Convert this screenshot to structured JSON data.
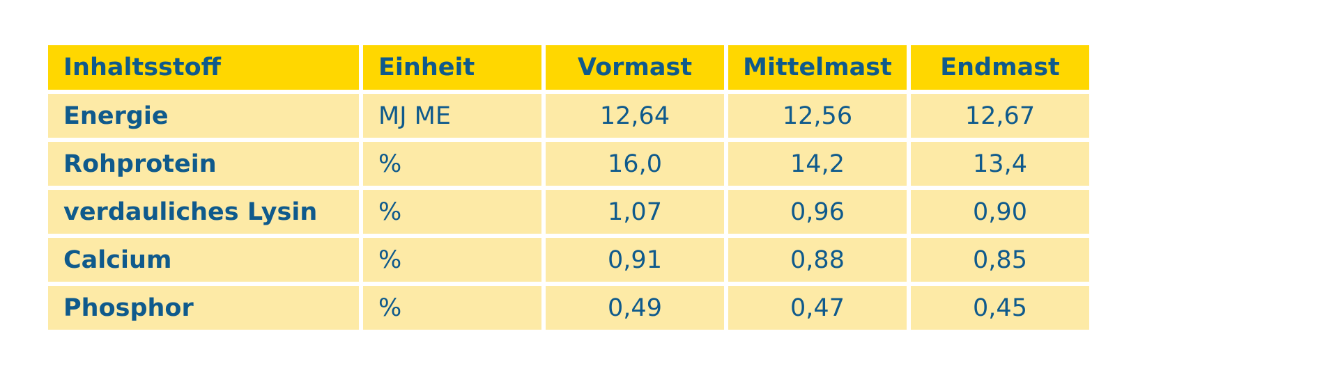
{
  "table": {
    "headers": [
      "Inhaltsstoff",
      "Einheit",
      "Vormast",
      "Mittelmast",
      "Endmast"
    ],
    "rows": [
      {
        "name": "Energie",
        "unit": "MJ ME",
        "vormast": "12,64",
        "mittelmast": "12,56",
        "endmast": "12,67"
      },
      {
        "name": "Rohprotein",
        "unit": "%",
        "vormast": "16,0",
        "mittelmast": "14,2",
        "endmast": "13,4"
      },
      {
        "name": "verdauliches Lysin",
        "unit": "%",
        "vormast": "1,07",
        "mittelmast": "0,96",
        "endmast": "0,90"
      },
      {
        "name": "Calcium",
        "unit": "%",
        "vormast": "0,91",
        "mittelmast": "0,88",
        "endmast": "0,85"
      },
      {
        "name": "Phosphor",
        "unit": "%",
        "vormast": "0,49",
        "mittelmast": "0,47",
        "endmast": "0,45"
      }
    ]
  },
  "colors": {
    "header_bg": "#ffd700",
    "row_bg": "#fdeaa6",
    "text": "#0f5a8c",
    "page_bg": "#ffffff"
  }
}
